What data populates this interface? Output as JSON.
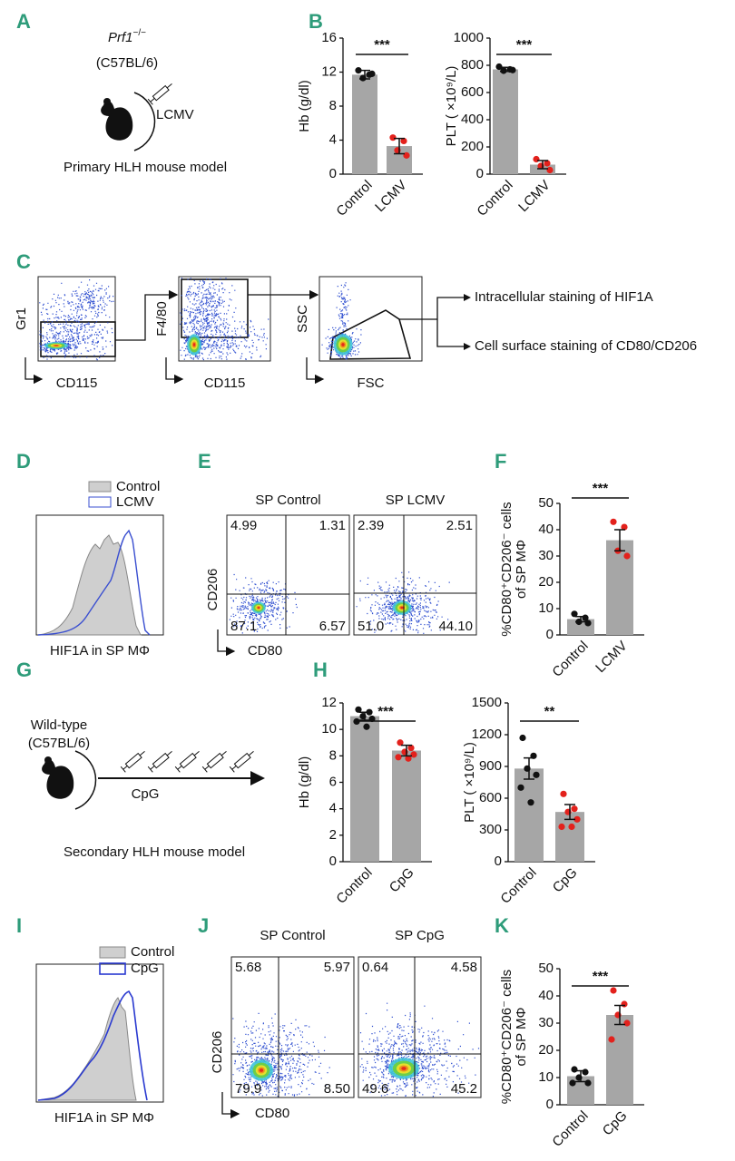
{
  "panel_labels": [
    "A",
    "B",
    "C",
    "D",
    "E",
    "F",
    "G",
    "H",
    "I",
    "J",
    "K"
  ],
  "panel_a": {
    "strain": "Prf1",
    "genotype": "−/−",
    "background": "(C57BL/6)",
    "virus": "LCMV",
    "caption": "Primary HLH mouse model"
  },
  "panel_b": [
    {
      "type": "bar",
      "y_label": [
        "Hb (g/dl)"
      ],
      "categories": [
        "Control",
        "LCMV"
      ],
      "values": [
        11.7,
        3.3
      ],
      "errors": [
        0.5,
        0.9
      ],
      "points": [
        [
          12.2,
          11.7,
          11.3,
          11.8
        ],
        [
          4.3,
          3.9,
          2.8,
          2.2
        ]
      ],
      "ylim": [
        0,
        16
      ],
      "yticks": [
        0,
        4,
        8,
        12,
        16
      ],
      "significance": "***",
      "bar_color": "#a6a6a6",
      "point_colors": [
        "#111111",
        "#e3211c"
      ]
    },
    {
      "type": "bar",
      "y_label": [
        "PLT ( ×10⁹/L)"
      ],
      "categories": [
        "Control",
        "LCMV"
      ],
      "values": [
        770,
        70
      ],
      "errors": [
        15,
        30
      ],
      "points": [
        [
          790,
          770,
          760,
          765
        ],
        [
          110,
          80,
          60,
          30
        ]
      ],
      "ylim": [
        0,
        1000
      ],
      "yticks": [
        0,
        200,
        400,
        600,
        800,
        1000
      ],
      "significance": "***",
      "bar_color": "#a6a6a6",
      "point_colors": [
        "#111111",
        "#e3211c"
      ]
    }
  ],
  "panel_c": {
    "plots": [
      {
        "y_label": "Gr1",
        "x_label": "CD115"
      },
      {
        "y_label": "F4/80",
        "x_label": "CD115"
      },
      {
        "y_label": "SSC",
        "x_label": "FSC"
      }
    ],
    "outcomes": [
      "Intracellular staining of  HIF1A",
      "Cell surface staining of  CD80/CD206"
    ]
  },
  "panel_d": {
    "legend": [
      "Control",
      "LCMV"
    ],
    "x_label": "HIF1A in SP MΦ"
  },
  "panel_e": {
    "plots": [
      {
        "title": "SP Control",
        "quadrants": [
          "4.99",
          "1.31",
          "87.1",
          "6.57"
        ]
      },
      {
        "title": "SP LCMV",
        "quadrants": [
          "2.39",
          "2.51",
          "51.0",
          "44.10"
        ]
      }
    ],
    "y_label": "CD206",
    "x_label": "CD80"
  },
  "panel_f": {
    "type": "bar",
    "y_label": [
      "%CD80⁺CD206⁻ cells",
      "of SP MΦ"
    ],
    "categories": [
      "Control",
      "LCMV"
    ],
    "values": [
      6,
      36
    ],
    "errors": [
      1,
      4
    ],
    "points": [
      [
        8,
        6.5,
        5,
        4.5
      ],
      [
        43,
        41,
        32,
        30
      ]
    ],
    "ylim": [
      0,
      50
    ],
    "yticks": [
      0,
      10,
      20,
      30,
      40,
      50
    ],
    "significance": "***",
    "bar_color": "#a6a6a6",
    "point_colors": [
      "#111111",
      "#e3211c"
    ]
  },
  "panel_g": {
    "strain": "Wild-type",
    "background": "(C57BL/6)",
    "treatment": "CpG",
    "caption": "Secondary HLH mouse model"
  },
  "panel_h": [
    {
      "type": "bar",
      "y_label": [
        "Hb (g/dl)"
      ],
      "categories": [
        "Control",
        "CpG"
      ],
      "values": [
        11.0,
        8.4
      ],
      "errors": [
        0.3,
        0.4
      ],
      "points": [
        [
          11.5,
          11.3,
          11.0,
          10.8,
          10.6,
          10.2
        ],
        [
          9.0,
          8.6,
          8.3,
          8.1,
          7.9,
          7.8
        ]
      ],
      "ylim": [
        0,
        12
      ],
      "yticks": [
        0,
        2,
        4,
        6,
        8,
        10,
        12
      ],
      "significance": "***",
      "bar_color": "#a6a6a6",
      "point_colors": [
        "#111111",
        "#e3211c"
      ]
    },
    {
      "type": "bar",
      "y_label": [
        "PLT ( ×10⁹/L)"
      ],
      "categories": [
        "Control",
        "CpG"
      ],
      "values": [
        880,
        470
      ],
      "errors": [
        100,
        70
      ],
      "points": [
        [
          1170,
          1000,
          880,
          820,
          700,
          560
        ],
        [
          640,
          500,
          470,
          400,
          330,
          330
        ]
      ],
      "ylim": [
        0,
        1500
      ],
      "yticks": [
        0,
        300,
        600,
        900,
        1200,
        1500
      ],
      "significance": "**",
      "bar_color": "#a6a6a6",
      "point_colors": [
        "#111111",
        "#e3211c"
      ]
    }
  ],
  "panel_i": {
    "legend": [
      "Control",
      "CpG"
    ],
    "x_label": "HIF1A in SP MΦ"
  },
  "panel_j": {
    "plots": [
      {
        "title": "SP Control",
        "quadrants": [
          "5.68",
          "5.97",
          "79.9",
          "8.50"
        ]
      },
      {
        "title": "SP CpG",
        "quadrants": [
          "0.64",
          "4.58",
          "49.6",
          "45.2"
        ]
      }
    ],
    "y_label": "CD206",
    "x_label": "CD80"
  },
  "panel_k": {
    "type": "bar",
    "y_label": [
      "%CD80⁺CD206⁻ cells",
      "of SP MΦ"
    ],
    "categories": [
      "Control",
      "CpG"
    ],
    "values": [
      10.5,
      33
    ],
    "errors": [
      2,
      3.5
    ],
    "points": [
      [
        13,
        12,
        10,
        8,
        8
      ],
      [
        42,
        37,
        33,
        30,
        24
      ]
    ],
    "ylim": [
      0,
      50
    ],
    "yticks": [
      0,
      10,
      20,
      30,
      40,
      50
    ],
    "significance": "***",
    "bar_color": "#a6a6a6",
    "point_colors": [
      "#111111",
      "#e3211c"
    ]
  }
}
